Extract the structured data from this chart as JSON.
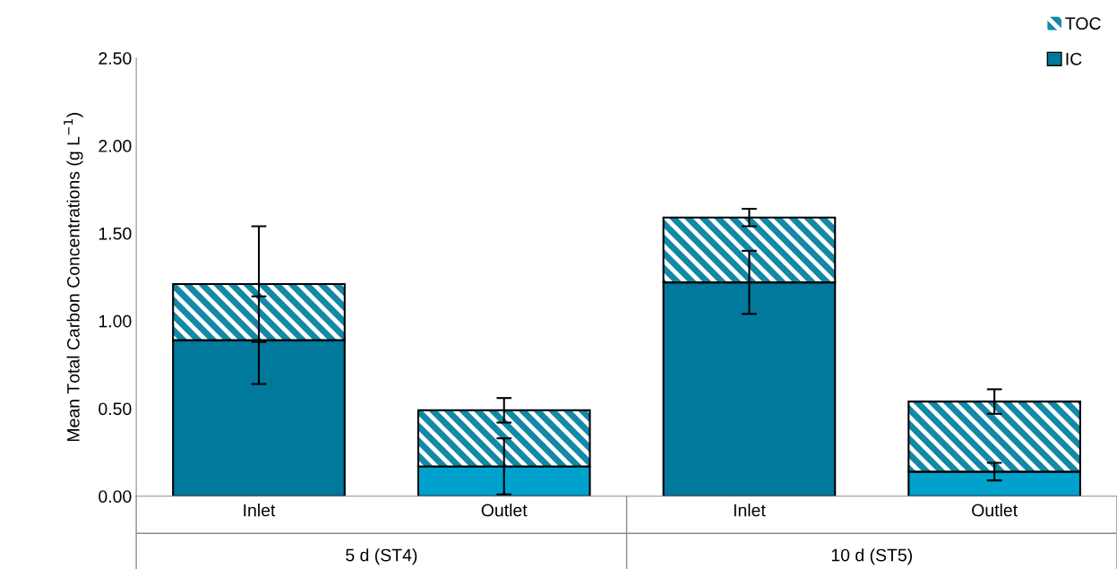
{
  "chart_data": {
    "type": "bar",
    "stacked": true,
    "ylabel": "Mean Total Carbon Concentrations (g L$^{−1}$)",
    "categories": [
      "Inlet",
      "Outlet",
      "Inlet",
      "Outlet"
    ],
    "series": [
      {
        "name": "IC",
        "colors": [
          "#00799c",
          "#00a2cd",
          "#00799c",
          "#00a2cd"
        ],
        "values": [
          0.89,
          0.17,
          1.22,
          0.14
        ],
        "errors": [
          0.25,
          0.16,
          0.18,
          0.05
        ]
      },
      {
        "name": "TOC",
        "color": "#1388a8",
        "values": [
          0.32,
          0.32,
          0.37,
          0.4
        ],
        "errors": [
          0.33,
          0.07,
          0.05,
          0.07
        ]
      }
    ],
    "ylim": [
      0,
      2.5
    ],
    "yticks": [
      {
        "value": 0,
        "label": "0.00"
      },
      {
        "value": 0.5,
        "label": "0.50"
      },
      {
        "value": 1,
        "label": "1.00"
      },
      {
        "value": 1.5,
        "label": "1.50"
      },
      {
        "value": 2,
        "label": "2.00"
      },
      {
        "value": 2.5,
        "label": "2.50"
      }
    ],
    "annotations": [
      "5 d (ST4)",
      "10 d (ST5)"
    ],
    "legend": "top right",
    "grid": false
  }
}
